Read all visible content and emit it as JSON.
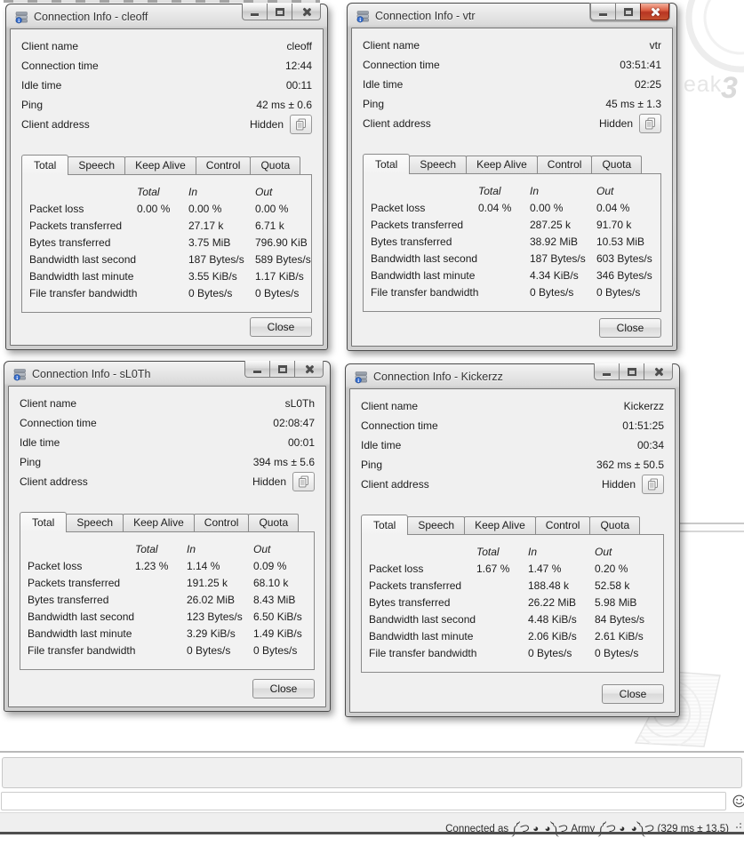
{
  "labels": {
    "client_name": "Client name",
    "connection_time": "Connection time",
    "idle_time": "Idle time",
    "ping": "Ping",
    "client_address": "Client address",
    "hidden": "Hidden",
    "close": "Close",
    "tabs": [
      "Total",
      "Speech",
      "Keep Alive",
      "Control",
      "Quota"
    ],
    "table_headers": [
      "Total",
      "In",
      "Out"
    ],
    "table_rows": [
      "Packet loss",
      "Packets transferred",
      "Bytes transferred",
      "Bandwidth last second",
      "Bandwidth last minute",
      "File transfer bandwidth"
    ]
  },
  "windows": [
    {
      "title": "Connection Info - cleoff",
      "active": false,
      "client_name": "cleoff",
      "connection_time": "12:44",
      "idle_time": "00:11",
      "ping": "42 ms ± 0.6",
      "client_address": "Hidden",
      "selected_tab": "Total",
      "rows": [
        [
          "0.00 %",
          "0.00 %",
          "0.00 %"
        ],
        [
          "",
          "27.17 k",
          "6.71 k"
        ],
        [
          "",
          "3.75 MiB",
          "796.90 KiB"
        ],
        [
          "",
          "187 Bytes/s",
          "589 Bytes/s"
        ],
        [
          "",
          "3.55 KiB/s",
          "1.17 KiB/s"
        ],
        [
          "",
          "0 Bytes/s",
          "0 Bytes/s"
        ]
      ]
    },
    {
      "title": "Connection Info - vtr",
      "active": true,
      "client_name": "vtr",
      "connection_time": "03:51:41",
      "idle_time": "02:25",
      "ping": "45 ms ± 1.3",
      "client_address": "Hidden",
      "selected_tab": "Total",
      "rows": [
        [
          "0.04 %",
          "0.00 %",
          "0.04 %"
        ],
        [
          "",
          "287.25 k",
          "91.70 k"
        ],
        [
          "",
          "38.92 MiB",
          "10.53 MiB"
        ],
        [
          "",
          "187 Bytes/s",
          "603 Bytes/s"
        ],
        [
          "",
          "4.34 KiB/s",
          "346 Bytes/s"
        ],
        [
          "",
          "0 Bytes/s",
          "0 Bytes/s"
        ]
      ]
    },
    {
      "title": "Connection Info - sL0Th",
      "active": false,
      "client_name": "sL0Th",
      "connection_time": "02:08:47",
      "idle_time": "00:01",
      "ping": "394 ms ± 5.6",
      "client_address": "Hidden",
      "selected_tab": "Total",
      "rows": [
        [
          "1.23 %",
          "1.14 %",
          "0.09 %"
        ],
        [
          "",
          "191.25 k",
          "68.10 k"
        ],
        [
          "",
          "26.02 MiB",
          "8.43 MiB"
        ],
        [
          "",
          "123 Bytes/s",
          "6.50 KiB/s"
        ],
        [
          "",
          "3.29 KiB/s",
          "1.49 KiB/s"
        ],
        [
          "",
          "0 Bytes/s",
          "0 Bytes/s"
        ]
      ]
    },
    {
      "title": "Connection Info - Kickerzz",
      "active": false,
      "client_name": "Kickerzz",
      "connection_time": "01:51:25",
      "idle_time": "00:34",
      "ping": "362 ms ± 50.5",
      "client_address": "Hidden",
      "selected_tab": "Total",
      "rows": [
        [
          "1.67 %",
          "1.47 %",
          "0.20 %"
        ],
        [
          "",
          "188.48 k",
          "52.58 k"
        ],
        [
          "",
          "26.22 MiB",
          "5.98 MiB"
        ],
        [
          "",
          "4.48 KiB/s",
          "84 Bytes/s"
        ],
        [
          "",
          "2.06 KiB/s",
          "2.61 KiB/s"
        ],
        [
          "",
          "0 Bytes/s",
          "0 Bytes/s"
        ]
      ]
    }
  ],
  "chat": {
    "input_value": ""
  },
  "status_bar": {
    "text": "Connected as ༼つ ◕_◕༽つ Army ༼つ ◕_◕༽つ (329 ms ± 13.5)"
  },
  "watermark": {
    "partial_text": "eak",
    "number": "3"
  },
  "icons": {
    "titlebar": "connection-info-icon",
    "copy": "copy-address-icon",
    "emoticon": "smiley-icon",
    "window_controls": [
      "minimize-icon",
      "maximize-icon",
      "close-icon"
    ]
  },
  "colors": {
    "dialog_bg": "#f0f0f0",
    "active_close_red": "#b83522",
    "titlebar_text": "#333333",
    "watermark_gray": "#e6e6e6"
  }
}
